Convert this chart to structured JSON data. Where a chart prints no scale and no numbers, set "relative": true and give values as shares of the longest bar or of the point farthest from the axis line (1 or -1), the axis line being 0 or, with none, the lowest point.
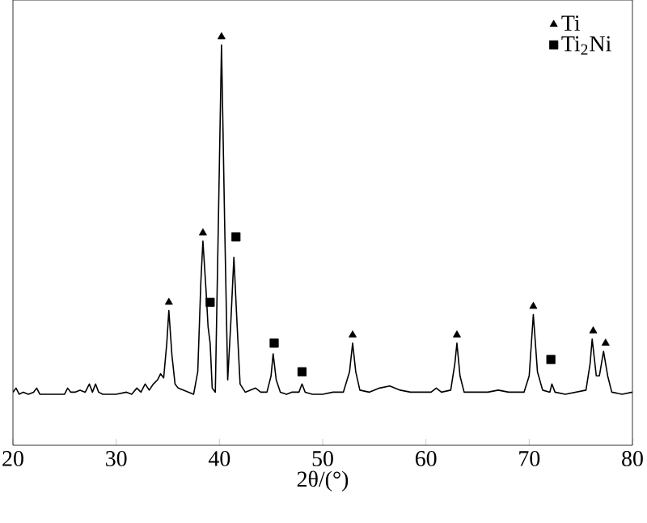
{
  "chart_data": {
    "type": "line",
    "xlabel": "2θ/(°)",
    "xlim": [
      20,
      80
    ],
    "xticks": [
      20,
      30,
      40,
      50,
      60,
      70,
      80
    ],
    "relative": true,
    "tick_labels": "x",
    "legend": "top right",
    "series": [
      {
        "color": "#000000",
        "x": [
          20,
          20.3,
          20.6,
          21,
          21.5,
          22,
          22.3,
          22.6,
          23,
          24,
          25,
          25.3,
          25.6,
          26,
          26.5,
          27,
          27.4,
          27.7,
          28,
          28.3,
          28.7,
          29,
          30,
          31,
          31.5,
          32,
          32.4,
          32.8,
          33.2,
          33.6,
          34,
          34.3,
          34.6,
          34.9,
          35.1,
          35.4,
          35.7,
          36,
          36.5,
          37,
          37.5,
          37.9,
          38.2,
          38.4,
          38.7,
          38.9,
          39.1,
          39.3,
          39.6,
          39.9,
          40.2,
          40.5,
          40.8,
          41.1,
          41.4,
          41.7,
          42,
          42.5,
          43,
          43.5,
          44,
          44.6,
          45,
          45.2,
          45.5,
          45.9,
          46.5,
          47,
          47.7,
          48,
          48.3,
          49,
          50,
          51,
          52,
          52.6,
          52.9,
          53.2,
          53.6,
          54.5,
          55.5,
          56.5,
          57.5,
          58.5,
          59.5,
          60.5,
          61,
          61.5,
          62.4,
          62.8,
          63,
          63.3,
          63.7,
          65,
          66,
          67,
          68,
          69.5,
          70,
          70.4,
          70.8,
          71.3,
          72,
          72.2,
          72.5,
          73.5,
          74.5,
          75.5,
          75.9,
          76.1,
          76.5,
          76.8,
          77.2,
          77.6,
          78,
          79,
          80
        ],
        "values": [
          0.13,
          0.14,
          0.125,
          0.13,
          0.125,
          0.13,
          0.14,
          0.125,
          0.125,
          0.125,
          0.125,
          0.14,
          0.13,
          0.13,
          0.135,
          0.13,
          0.15,
          0.13,
          0.15,
          0.13,
          0.125,
          0.125,
          0.125,
          0.13,
          0.125,
          0.14,
          0.13,
          0.15,
          0.135,
          0.15,
          0.16,
          0.175,
          0.165,
          0.25,
          0.33,
          0.22,
          0.15,
          0.14,
          0.135,
          0.13,
          0.125,
          0.18,
          0.4,
          0.5,
          0.38,
          0.29,
          0.25,
          0.14,
          0.13,
          0.55,
          0.98,
          0.55,
          0.16,
          0.3,
          0.46,
          0.3,
          0.15,
          0.13,
          0.135,
          0.14,
          0.13,
          0.13,
          0.17,
          0.224,
          0.16,
          0.13,
          0.125,
          0.13,
          0.13,
          0.15,
          0.13,
          0.125,
          0.125,
          0.13,
          0.13,
          0.18,
          0.25,
          0.18,
          0.135,
          0.13,
          0.14,
          0.145,
          0.135,
          0.13,
          0.13,
          0.13,
          0.14,
          0.13,
          0.135,
          0.2,
          0.25,
          0.17,
          0.13,
          0.13,
          0.13,
          0.135,
          0.13,
          0.13,
          0.17,
          0.32,
          0.18,
          0.135,
          0.13,
          0.15,
          0.13,
          0.125,
          0.13,
          0.135,
          0.2,
          0.26,
          0.17,
          0.17,
          0.23,
          0.17,
          0.13,
          0.125,
          0.13
        ]
      },
      {
        "type": "scatter",
        "name": "Ti",
        "color": "#000000",
        "marker": "triangle",
        "x": [
          35.1,
          38.4,
          40.2,
          52.9,
          63.0,
          70.4,
          76.2,
          77.4
        ],
        "values": [
          0.35,
          0.52,
          1.0,
          0.27,
          0.27,
          0.34,
          0.28,
          0.25
        ]
      },
      {
        "type": "scatter",
        "name": "Ti$_{2}$Ni",
        "color": "#000000",
        "marker": "square",
        "x": [
          39.1,
          41.6,
          45.3,
          48.0,
          72.1
        ],
        "values": [
          0.35,
          0.51,
          0.25,
          0.18,
          0.21
        ]
      }
    ]
  }
}
